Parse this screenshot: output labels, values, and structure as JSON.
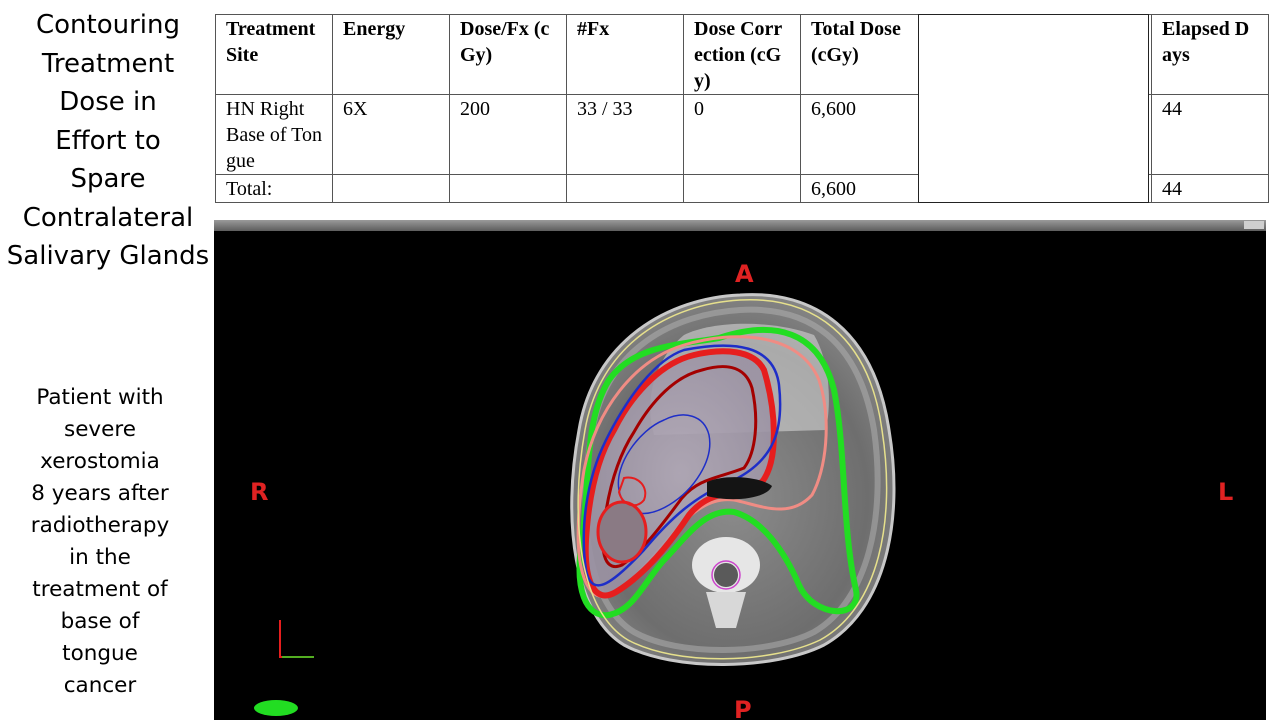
{
  "title_lines": [
    "Contouring",
    "Treatment",
    "Dose in",
    "Effort to",
    "Spare",
    "Contralateral",
    "Salivary Glands"
  ],
  "caption_lines": [
    "Patient with",
    "severe",
    "xerostomia",
    "8 years after",
    "radiotherapy",
    "in the",
    "treatment of",
    "base of",
    "tongue",
    "cancer"
  ],
  "table": {
    "headers": [
      "Treatment Site",
      "Energy",
      "Dose/Fx (cGy)",
      "#Fx",
      "Dose Correction (cGy)",
      "Total Dose (cGy)",
      "",
      "Elapsed Days"
    ],
    "row": [
      "HN Right Base of Tongue",
      "6X",
      "200",
      "33 / 33",
      "0",
      "6,600",
      "",
      "44"
    ],
    "total": [
      "Total:",
      "",
      "",
      "",
      "",
      "6,600",
      "",
      "44"
    ]
  },
  "image": {
    "labels": {
      "anterior": "A",
      "posterior": "P",
      "right": "R",
      "left": "L"
    },
    "contour_colors": {
      "ptv": "#e61e1e",
      "ptv_dark": "#a40000",
      "parotid": "#1e2ec8",
      "spared_gland": "#22dd22",
      "isodose": "#f08c84",
      "body": "#e6e08c",
      "cord": "#cc44cc"
    }
  }
}
